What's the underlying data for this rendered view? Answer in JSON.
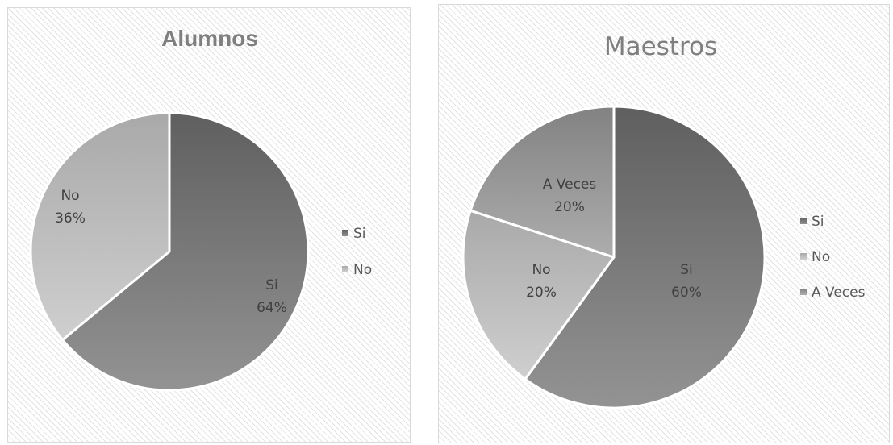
{
  "chart_data": [
    {
      "type": "pie",
      "title": "Alumnos",
      "categories": [
        "Si",
        "No"
      ],
      "values": [
        64,
        36
      ],
      "data_labels": [
        {
          "category": "Si",
          "percent": "64%"
        },
        {
          "category": "No",
          "percent": "36%"
        }
      ],
      "legend": [
        "Si",
        "No"
      ],
      "legend_placement": "right",
      "colors": [
        "#777777",
        "#bdbdbd"
      ]
    },
    {
      "type": "pie",
      "title": "Maestros",
      "categories": [
        "Si",
        "No",
        "A Veces"
      ],
      "values": [
        60,
        20,
        20
      ],
      "data_labels": [
        {
          "category": "Si",
          "percent": "60%"
        },
        {
          "category": "No",
          "percent": "20%"
        },
        {
          "category": "A Veces",
          "percent": "20%"
        }
      ],
      "legend": [
        "Si",
        "No",
        "A Veces"
      ],
      "legend_placement": "right",
      "colors": [
        "#777777",
        "#bdbdbd",
        "#9a9a9a"
      ]
    }
  ]
}
